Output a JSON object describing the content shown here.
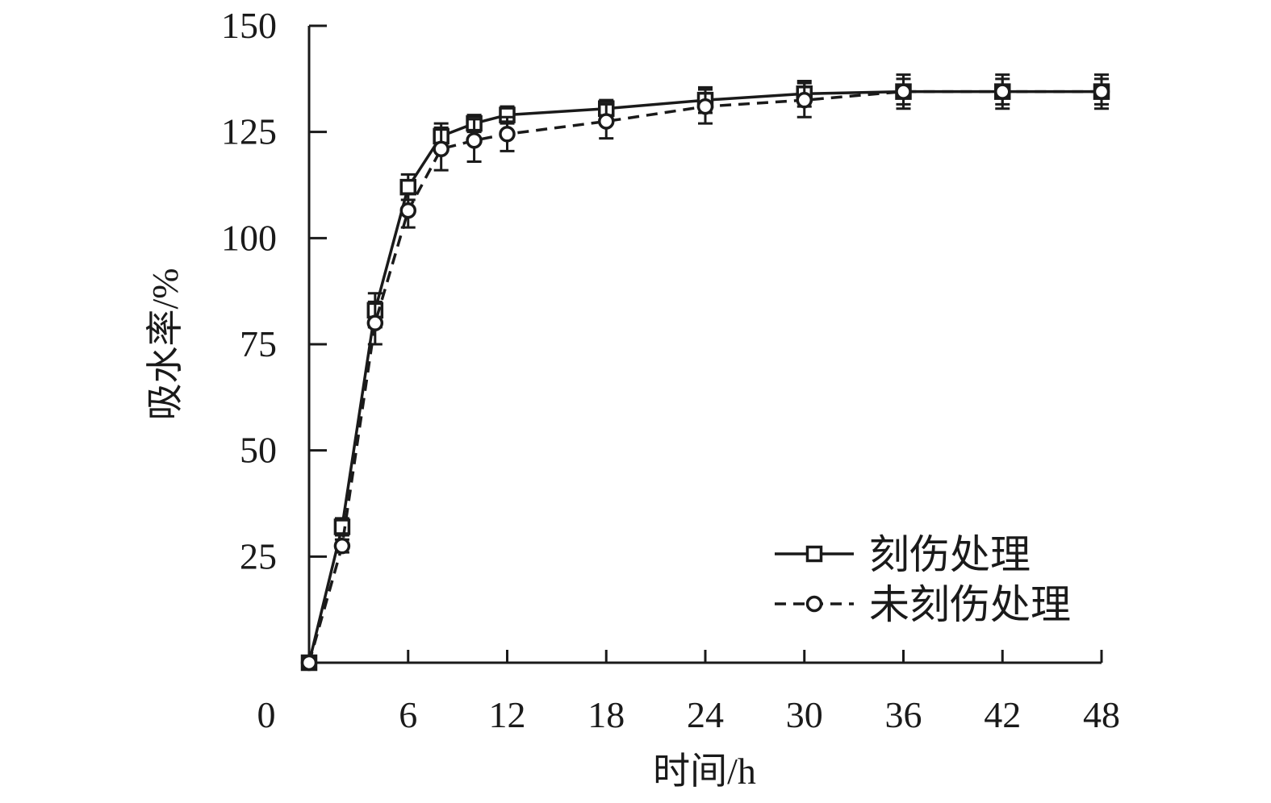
{
  "chart_data": {
    "type": "line",
    "xlabel": "时间/h",
    "ylabel": "吸水率/%",
    "xlim": [
      0,
      48
    ],
    "ylim": [
      0,
      150
    ],
    "xticks": [
      0,
      6,
      12,
      18,
      24,
      30,
      36,
      42,
      48
    ],
    "yticks": [
      25,
      50,
      75,
      100,
      125,
      150
    ],
    "grid": false,
    "legend_position": "bottom-right",
    "series": [
      {
        "name": "刻伤处理",
        "marker": "square",
        "line_style": "solid",
        "x": [
          0,
          2,
          4,
          6,
          8,
          10,
          12,
          18,
          24,
          30,
          36,
          42,
          48
        ],
        "y": [
          0,
          32,
          83,
          112,
          124,
          127,
          129,
          130.5,
          132.5,
          134,
          134.5,
          134.5,
          134.5
        ],
        "error": [
          0,
          2,
          4,
          3,
          3,
          2,
          2,
          2,
          3,
          3,
          4,
          4,
          4
        ]
      },
      {
        "name": "未刻伤处理",
        "marker": "circle",
        "line_style": "dashed",
        "x": [
          0,
          2,
          4,
          6,
          8,
          10,
          12,
          18,
          24,
          30,
          36,
          42,
          48
        ],
        "y": [
          0,
          27.5,
          80,
          106.5,
          121,
          123,
          124.5,
          127.5,
          131,
          132.5,
          134.5,
          134.5,
          134.5
        ],
        "error": [
          0,
          1.5,
          5,
          4,
          5,
          5,
          4,
          4,
          4,
          4,
          3,
          3,
          3
        ]
      }
    ],
    "colors": {
      "ink": "#1a1a1a"
    }
  }
}
